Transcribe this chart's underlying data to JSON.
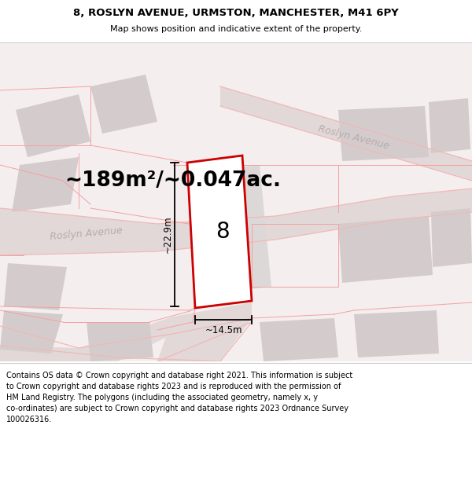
{
  "title_line1": "8, ROSLYN AVENUE, URMSTON, MANCHESTER, M41 6PY",
  "title_line2": "Map shows position and indicative extent of the property.",
  "area_text": "~189m²/~0.047ac.",
  "label_number": "8",
  "dim_height": "~22.9m",
  "dim_width": "~14.5m",
  "road_label_left": "Roslyn Avenue",
  "road_label_top": "Roslyn Avenue",
  "footer_text": "Contains OS data © Crown copyright and database right 2021. This information is subject to Crown copyright and database rights 2023 and is reproduced with the permission of HM Land Registry. The polygons (including the associated geometry, namely x, y co-ordinates) are subject to Crown copyright and database rights 2023 Ordnance Survey 100026316.",
  "bg_color": "#f5eeee",
  "road_fill": "#e2d8d8",
  "road_line": "#f0b8b8",
  "building_fill": "#d4cccc",
  "plot_color": "#cc0000",
  "text_color": "#000000",
  "road_text_color": "#b8acac",
  "title_fontsize": 9.5,
  "subtitle_fontsize": 8.0,
  "area_fontsize": 19,
  "label_fontsize": 20,
  "dim_fontsize": 8.5,
  "road_fontsize": 9,
  "footer_fontsize": 7.0
}
